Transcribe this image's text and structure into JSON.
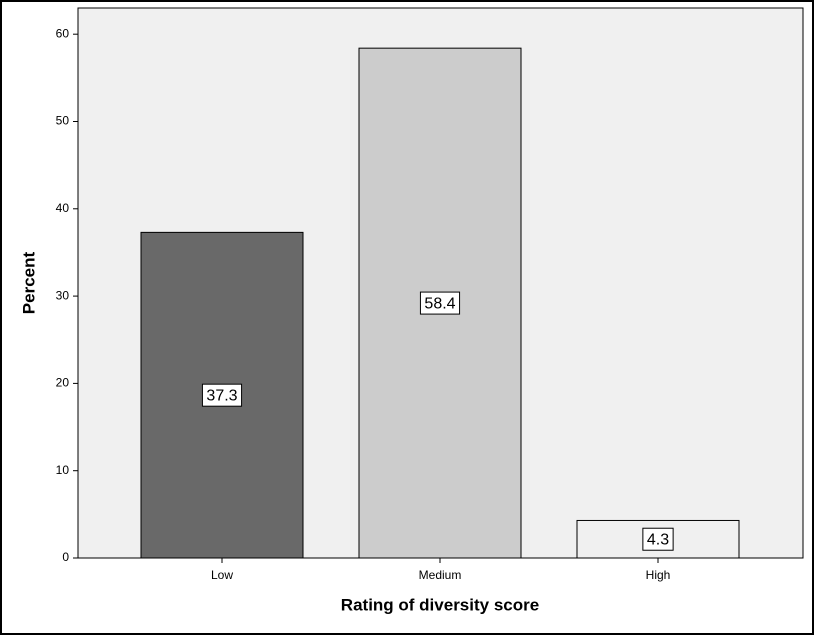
{
  "chart_data": {
    "type": "bar",
    "categories": [
      "Low",
      "Medium",
      "High"
    ],
    "values": [
      37.3,
      58.4,
      4.3
    ],
    "colors": [
      "#696969",
      "#cccccc",
      "#f0f0f0"
    ],
    "xlabel": "Rating of diversity score",
    "ylabel": "Percent",
    "ylim": [
      0,
      63
    ],
    "yticks": [
      0,
      10,
      20,
      30,
      40,
      50,
      60
    ],
    "grid": false
  }
}
